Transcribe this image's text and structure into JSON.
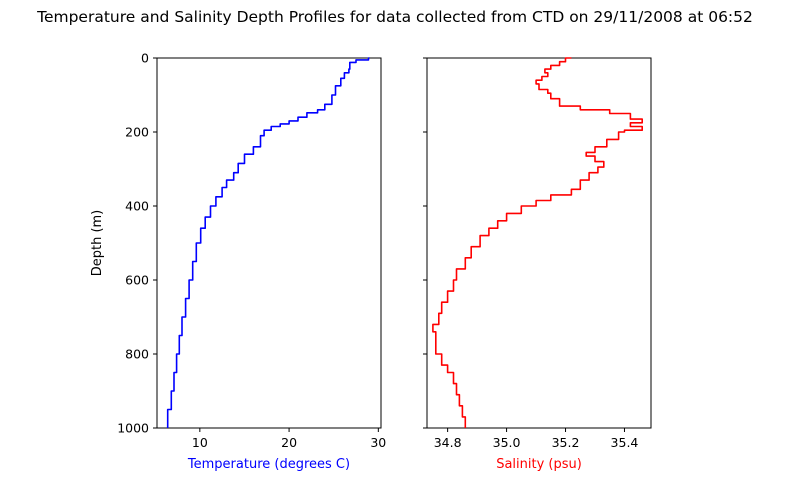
{
  "chart_data": {
    "title": "Temperature and Salinity Depth Profiles for data collected from CTD on 29/11/2008 at 06:52",
    "shared_ylabel": "Depth (m)",
    "ylim_inverted": [
      0,
      1000
    ],
    "y_ticks": [
      "0",
      "200",
      "400",
      "600",
      "800",
      "1000"
    ],
    "panels": [
      {
        "type": "line",
        "name": "temperature",
        "xlabel": "Temperature (degrees C)",
        "xlabel_color": "#0000ff",
        "line_color": "#0000ff",
        "xlim": [
          5.2,
          30.3
        ],
        "x_ticks": [
          10,
          20,
          30
        ],
        "x_tick_labels": [
          "10",
          "20",
          "30"
        ],
        "y_tick_labels_shown": true,
        "points": [
          [
            29.0,
            0
          ],
          [
            28.9,
            5
          ],
          [
            27.5,
            12
          ],
          [
            26.8,
            30
          ],
          [
            26.7,
            40
          ],
          [
            26.2,
            55
          ],
          [
            25.8,
            75
          ],
          [
            25.2,
            100
          ],
          [
            24.8,
            125
          ],
          [
            24.0,
            140
          ],
          [
            23.2,
            148
          ],
          [
            22.0,
            160
          ],
          [
            21.0,
            170
          ],
          [
            20.0,
            178
          ],
          [
            19.0,
            185
          ],
          [
            18.0,
            195
          ],
          [
            17.2,
            210
          ],
          [
            16.8,
            240
          ],
          [
            16.0,
            260
          ],
          [
            15.0,
            285
          ],
          [
            14.3,
            310
          ],
          [
            13.8,
            330
          ],
          [
            13.0,
            350
          ],
          [
            12.5,
            375
          ],
          [
            11.8,
            400
          ],
          [
            11.2,
            430
          ],
          [
            10.6,
            460
          ],
          [
            10.1,
            500
          ],
          [
            9.6,
            550
          ],
          [
            9.2,
            600
          ],
          [
            8.8,
            650
          ],
          [
            8.4,
            700
          ],
          [
            8.0,
            750
          ],
          [
            7.7,
            800
          ],
          [
            7.4,
            850
          ],
          [
            7.1,
            900
          ],
          [
            6.8,
            950
          ],
          [
            6.4,
            1000
          ]
        ]
      },
      {
        "type": "line",
        "name": "salinity",
        "xlabel": "Salinity (psu)",
        "xlabel_color": "#ff0000",
        "line_color": "#ff0000",
        "xlim": [
          34.73,
          35.49
        ],
        "x_ticks": [
          34.8,
          35.0,
          35.2,
          35.4
        ],
        "x_tick_labels": [
          "34.8",
          "35.0",
          "35.2",
          "35.4"
        ],
        "y_tick_labels_shown": false,
        "points": [
          [
            35.22,
            0
          ],
          [
            35.2,
            10
          ],
          [
            35.18,
            20
          ],
          [
            35.15,
            30
          ],
          [
            35.13,
            40
          ],
          [
            35.14,
            50
          ],
          [
            35.12,
            60
          ],
          [
            35.1,
            70
          ],
          [
            35.11,
            85
          ],
          [
            35.14,
            95
          ],
          [
            35.15,
            110
          ],
          [
            35.18,
            130
          ],
          [
            35.25,
            140
          ],
          [
            35.35,
            150
          ],
          [
            35.42,
            165
          ],
          [
            35.46,
            175
          ],
          [
            35.42,
            185
          ],
          [
            35.46,
            195
          ],
          [
            35.4,
            200
          ],
          [
            35.38,
            220
          ],
          [
            35.34,
            240
          ],
          [
            35.3,
            255
          ],
          [
            35.27,
            265
          ],
          [
            35.3,
            280
          ],
          [
            35.33,
            295
          ],
          [
            35.31,
            310
          ],
          [
            35.28,
            330
          ],
          [
            35.25,
            355
          ],
          [
            35.22,
            370
          ],
          [
            35.15,
            385
          ],
          [
            35.1,
            400
          ],
          [
            35.05,
            420
          ],
          [
            35.0,
            440
          ],
          [
            34.97,
            460
          ],
          [
            34.94,
            480
          ],
          [
            34.91,
            510
          ],
          [
            34.88,
            540
          ],
          [
            34.86,
            570
          ],
          [
            34.83,
            600
          ],
          [
            34.82,
            630
          ],
          [
            34.8,
            660
          ],
          [
            34.78,
            690
          ],
          [
            34.77,
            720
          ],
          [
            34.75,
            740
          ],
          [
            34.76,
            770
          ],
          [
            34.76,
            800
          ],
          [
            34.78,
            830
          ],
          [
            34.8,
            850
          ],
          [
            34.82,
            880
          ],
          [
            34.83,
            910
          ],
          [
            34.84,
            940
          ],
          [
            34.85,
            970
          ],
          [
            34.86,
            1000
          ]
        ]
      }
    ]
  }
}
